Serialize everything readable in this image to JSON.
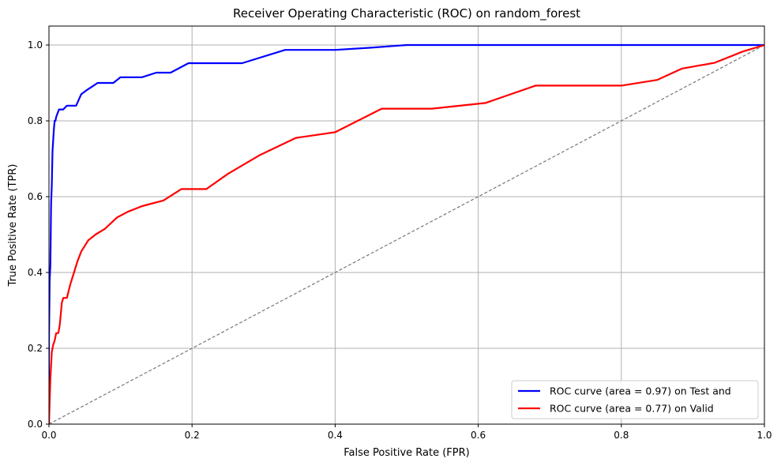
{
  "chart_data": {
    "type": "line",
    "title": "Receiver Operating Characteristic (ROC) on random_forest",
    "xlabel": "False Positive Rate (FPR)",
    "ylabel": "True Positive Rate (TPR)",
    "xlim": [
      0,
      1
    ],
    "ylim": [
      0,
      1.05
    ],
    "xticks": [
      "0.0",
      "0.2",
      "0.4",
      "0.6",
      "0.8",
      "1.0"
    ],
    "yticks": [
      "0.0",
      "0.2",
      "0.4",
      "0.6",
      "0.8",
      "1.0"
    ],
    "grid": true,
    "legend_position": "lower-right",
    "series": [
      {
        "name": "ROC curve (area = 0.97) on Test and",
        "color": "#0000ff",
        "x": [
          0,
          0,
          0.001,
          0.002,
          0.003,
          0.004,
          0.005,
          0.006,
          0.007,
          0.008,
          0.009,
          0.01,
          0.012,
          0.014,
          0.016,
          0.018,
          0.02,
          0.025,
          0.03,
          0.038,
          0.045,
          0.052,
          0.06,
          0.068,
          0.08,
          0.09,
          0.1,
          0.13,
          0.15,
          0.17,
          0.195,
          0.23,
          0.27,
          0.33,
          0.4,
          0.45,
          0.5,
          1.0
        ],
        "y": [
          0,
          0.22,
          0.38,
          0.42,
          0.58,
          0.63,
          0.72,
          0.75,
          0.78,
          0.8,
          0.8,
          0.81,
          0.82,
          0.83,
          0.83,
          0.83,
          0.83,
          0.84,
          0.84,
          0.84,
          0.87,
          0.88,
          0.89,
          0.9,
          0.9,
          0.9,
          0.915,
          0.915,
          0.927,
          0.927,
          0.952,
          0.952,
          0.952,
          0.987,
          0.987,
          0.993,
          1.0,
          1.0
        ]
      },
      {
        "name": "ROC curve (area = 0.77) on Valid",
        "color": "#ff0000",
        "x": [
          0,
          0.002,
          0.004,
          0.006,
          0.008,
          0.01,
          0.013,
          0.015,
          0.018,
          0.02,
          0.025,
          0.03,
          0.035,
          0.04,
          0.045,
          0.055,
          0.065,
          0.078,
          0.095,
          0.11,
          0.13,
          0.16,
          0.185,
          0.22,
          0.25,
          0.295,
          0.345,
          0.4,
          0.465,
          0.535,
          0.61,
          0.68,
          0.8,
          0.85,
          0.885,
          0.93,
          0.97,
          1.0
        ],
        "y": [
          0,
          0.12,
          0.19,
          0.21,
          0.22,
          0.24,
          0.24,
          0.26,
          0.32,
          0.333,
          0.333,
          0.37,
          0.4,
          0.43,
          0.455,
          0.485,
          0.5,
          0.515,
          0.545,
          0.56,
          0.575,
          0.59,
          0.62,
          0.62,
          0.66,
          0.71,
          0.755,
          0.77,
          0.832,
          0.832,
          0.847,
          0.893,
          0.893,
          0.908,
          0.938,
          0.953,
          0.983,
          1.0
        ]
      },
      {
        "name": "",
        "color": "#808080",
        "dashed": true,
        "x": [
          0,
          1
        ],
        "y": [
          0,
          1
        ]
      }
    ]
  }
}
